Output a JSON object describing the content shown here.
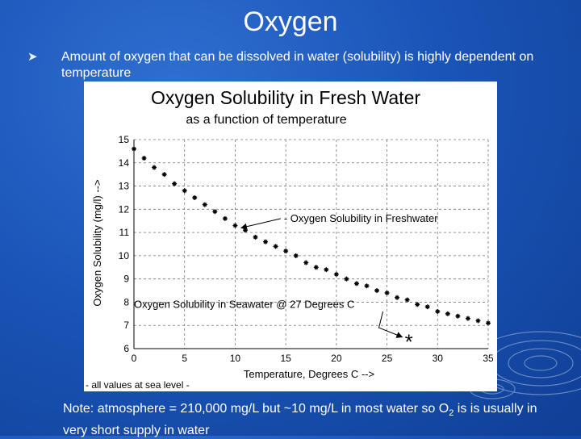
{
  "slide": {
    "title": "Oxygen",
    "bullet": "Amount of oxygen that can be dissolved in water (solubility) is highly dependent on temperature",
    "note_prefix": "Note:  atmosphere = 210,000 mg/L but ~10 mg/L in most water so O",
    "note_sub": "2",
    "note_suffix": " is is usually in very short supply in water"
  },
  "chart_data": {
    "type": "scatter",
    "title": "Oxygen Solubility in Fresh Water",
    "subtitle": "as a function of temperature",
    "xlabel": "Temperature, Degrees C -->",
    "ylabel": "Oxygen Solubility (mg/l) -->",
    "xlim": [
      0,
      35
    ],
    "ylim": [
      6,
      15
    ],
    "x_ticks": [
      "0",
      "5",
      "10",
      "15",
      "20",
      "25",
      "30",
      "35"
    ],
    "y_ticks": [
      "6",
      "7",
      "8",
      "9",
      "10",
      "11",
      "12",
      "13",
      "14",
      "15"
    ],
    "grid": "dashed",
    "footnote": "- all values at sea level -",
    "series": [
      {
        "name": "Oxygen Solubility in Freshwater",
        "x": [
          0,
          1,
          2,
          3,
          4,
          5,
          6,
          7,
          8,
          9,
          10,
          11,
          12,
          13,
          14,
          15,
          16,
          17,
          18,
          19,
          20,
          21,
          22,
          23,
          24,
          25,
          26,
          27,
          28,
          29,
          30,
          31,
          32,
          33,
          34,
          35
        ],
        "y": [
          14.6,
          14.2,
          13.8,
          13.5,
          13.1,
          12.8,
          12.5,
          12.2,
          11.9,
          11.6,
          11.3,
          11.1,
          10.8,
          10.6,
          10.4,
          10.2,
          10.0,
          9.7,
          9.5,
          9.4,
          9.2,
          9.0,
          8.8,
          8.7,
          8.5,
          8.4,
          8.2,
          8.1,
          7.9,
          7.8,
          7.6,
          7.5,
          7.4,
          7.3,
          7.2,
          7.1
        ],
        "color": "#000000"
      }
    ],
    "annotations": [
      {
        "text": "Oxygen Solubility in Freshwater",
        "x": 14.5,
        "y": 11.6,
        "arrow_to": [
          10.6,
          11.2
        ]
      },
      {
        "text": "Oxygen Solubility in Seawater @ 27 Degrees C",
        "x": 0,
        "y": 7.9,
        "arrow_to": [
          26.5,
          6.5
        ]
      }
    ],
    "seawater_point": {
      "x": 27,
      "y": 6.4,
      "marker": "*"
    }
  }
}
